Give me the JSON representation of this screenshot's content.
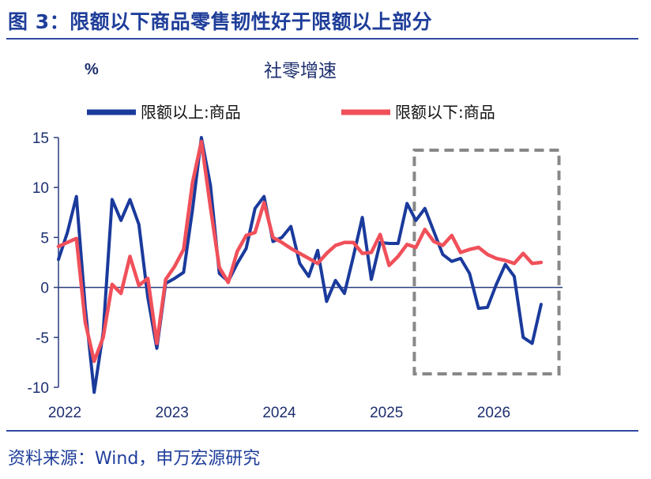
{
  "figure_title": "图 3：限额以下商品零售韧性好于限额以上部分",
  "source": "资料来源：Wind，申万宏源研究",
  "colors": {
    "above": "#1a3a9c",
    "below": "#f0505a",
    "highlight_box": "#888888",
    "title": "#1f3e9a"
  },
  "chart_data": {
    "type": "line",
    "title": "社零增速",
    "ylabel": "%",
    "xlabel": "",
    "ylim": [
      -10,
      15
    ],
    "yticks": [
      15,
      10,
      5,
      0,
      -5,
      -10
    ],
    "xlim": [
      2022,
      2026.7
    ],
    "xticks": [
      "2022",
      "2023",
      "2024",
      "2025",
      "2026"
    ],
    "legend_position": "top",
    "highlight_range": [
      2025.333,
      2026.667
    ],
    "series": [
      {
        "name": "限额以上:商品",
        "color": "#1a3a9c",
        "points": [
          [
            2022.0,
            2.8
          ],
          [
            2022.083,
            5.5
          ],
          [
            2022.167,
            9.1
          ],
          [
            2022.25,
            -2.0
          ],
          [
            2022.333,
            -10.5
          ],
          [
            2022.417,
            -4.5
          ],
          [
            2022.5,
            8.8
          ],
          [
            2022.583,
            6.7
          ],
          [
            2022.667,
            8.8
          ],
          [
            2022.75,
            6.3
          ],
          [
            2022.833,
            -1.0
          ],
          [
            2022.917,
            -6.1
          ],
          [
            2023.0,
            0.4
          ],
          [
            2023.083,
            0.9
          ],
          [
            2023.167,
            1.5
          ],
          [
            2023.25,
            7.8
          ],
          [
            2023.333,
            15.0
          ],
          [
            2023.417,
            10.2
          ],
          [
            2023.5,
            1.4
          ],
          [
            2023.583,
            0.6
          ],
          [
            2023.667,
            2.4
          ],
          [
            2023.75,
            3.9
          ],
          [
            2023.833,
            7.9
          ],
          [
            2023.917,
            9.1
          ],
          [
            2024.0,
            4.6
          ],
          [
            2024.083,
            5.0
          ],
          [
            2024.167,
            6.1
          ],
          [
            2024.25,
            2.4
          ],
          [
            2024.333,
            1.1
          ],
          [
            2024.417,
            3.7
          ],
          [
            2024.5,
            -1.4
          ],
          [
            2024.583,
            0.7
          ],
          [
            2024.667,
            -0.6
          ],
          [
            2024.75,
            3.1
          ],
          [
            2024.833,
            7.0
          ],
          [
            2024.917,
            0.8
          ],
          [
            2025.0,
            4.5
          ],
          [
            2025.083,
            4.4
          ],
          [
            2025.167,
            4.4
          ],
          [
            2025.25,
            8.4
          ],
          [
            2025.333,
            6.7
          ],
          [
            2025.417,
            7.9
          ],
          [
            2025.5,
            5.6
          ],
          [
            2025.583,
            3.3
          ],
          [
            2025.667,
            2.6
          ],
          [
            2025.75,
            2.9
          ],
          [
            2025.833,
            1.4
          ],
          [
            2025.917,
            -2.1
          ],
          [
            2026.0,
            -2.0
          ],
          [
            2026.083,
            0.3
          ],
          [
            2026.167,
            2.3
          ],
          [
            2026.25,
            1.1
          ],
          [
            2026.333,
            -5.0
          ],
          [
            2026.417,
            -5.6
          ],
          [
            2026.5,
            -1.7
          ]
        ]
      },
      {
        "name": "限额以下:商品",
        "color": "#f0505a",
        "points": [
          [
            2022.0,
            4.1
          ],
          [
            2022.083,
            4.5
          ],
          [
            2022.167,
            4.9
          ],
          [
            2022.25,
            -3.5
          ],
          [
            2022.333,
            -7.4
          ],
          [
            2022.417,
            -5.0
          ],
          [
            2022.5,
            0.3
          ],
          [
            2022.583,
            -0.6
          ],
          [
            2022.667,
            3.1
          ],
          [
            2022.75,
            0.2
          ],
          [
            2022.833,
            0.9
          ],
          [
            2022.917,
            -5.6
          ],
          [
            2023.0,
            0.8
          ],
          [
            2023.083,
            2.1
          ],
          [
            2023.167,
            3.8
          ],
          [
            2023.25,
            10.5
          ],
          [
            2023.333,
            14.6
          ],
          [
            2023.417,
            8.0
          ],
          [
            2023.5,
            2.0
          ],
          [
            2023.583,
            0.5
          ],
          [
            2023.667,
            3.6
          ],
          [
            2023.75,
            5.2
          ],
          [
            2023.833,
            5.5
          ],
          [
            2023.917,
            8.5
          ],
          [
            2024.0,
            5.0
          ],
          [
            2024.083,
            4.5
          ],
          [
            2024.167,
            3.9
          ],
          [
            2024.25,
            3.4
          ],
          [
            2024.333,
            2.9
          ],
          [
            2024.417,
            2.4
          ],
          [
            2024.5,
            3.4
          ],
          [
            2024.583,
            4.2
          ],
          [
            2024.667,
            4.5
          ],
          [
            2024.75,
            4.5
          ],
          [
            2024.833,
            3.4
          ],
          [
            2024.917,
            3.5
          ],
          [
            2025.0,
            5.3
          ],
          [
            2025.083,
            2.2
          ],
          [
            2025.167,
            3.1
          ],
          [
            2025.25,
            4.3
          ],
          [
            2025.333,
            4.0
          ],
          [
            2025.417,
            5.8
          ],
          [
            2025.5,
            4.6
          ],
          [
            2025.583,
            4.2
          ],
          [
            2025.667,
            5.2
          ],
          [
            2025.75,
            3.5
          ],
          [
            2025.833,
            3.8
          ],
          [
            2025.917,
            4.0
          ],
          [
            2026.0,
            3.3
          ],
          [
            2026.083,
            2.9
          ],
          [
            2026.167,
            2.7
          ],
          [
            2026.25,
            2.4
          ],
          [
            2026.333,
            3.4
          ],
          [
            2026.417,
            2.4
          ],
          [
            2026.5,
            2.5
          ]
        ]
      }
    ]
  }
}
